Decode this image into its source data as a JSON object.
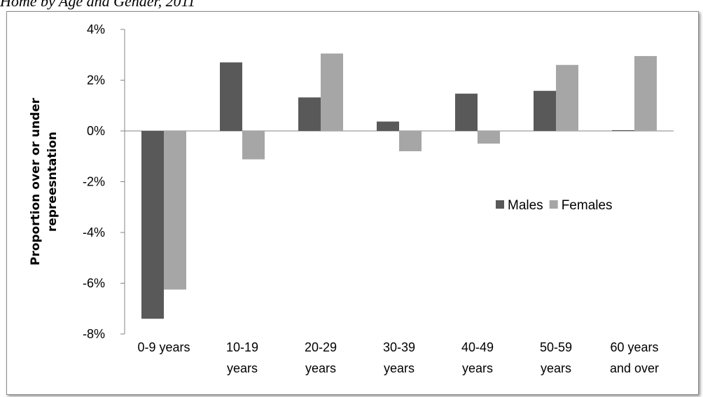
{
  "caption": "Home by Age and Gender, 2011",
  "chart_data": {
    "type": "bar",
    "categories": [
      [
        "0-9 years"
      ],
      [
        "10-19",
        "years"
      ],
      [
        "20-29",
        "years"
      ],
      [
        "30-39",
        "years"
      ],
      [
        "40-49",
        "years"
      ],
      [
        "50-59",
        "years"
      ],
      [
        "60 years",
        "and over"
      ]
    ],
    "series": [
      {
        "name": "Males",
        "color": "#595959",
        "values": [
          -7.4,
          2.7,
          1.32,
          0.37,
          1.47,
          1.58,
          0.03
        ]
      },
      {
        "name": "Females",
        "color": "#a6a6a6",
        "values": [
          -6.25,
          -1.12,
          3.05,
          -0.8,
          -0.5,
          2.6,
          2.95
        ]
      }
    ],
    "ylabel": [
      "Proportion over or under",
      "repreesntation"
    ],
    "ylim": [
      -8,
      4
    ],
    "yticks": [
      4,
      2,
      0,
      -2,
      -4,
      -6,
      -8
    ],
    "ytick_labels": [
      "4%",
      "2%",
      "0%",
      "-2%",
      "-4%",
      "-6%",
      "-8%"
    ],
    "legend_position": "right",
    "grid": false
  }
}
